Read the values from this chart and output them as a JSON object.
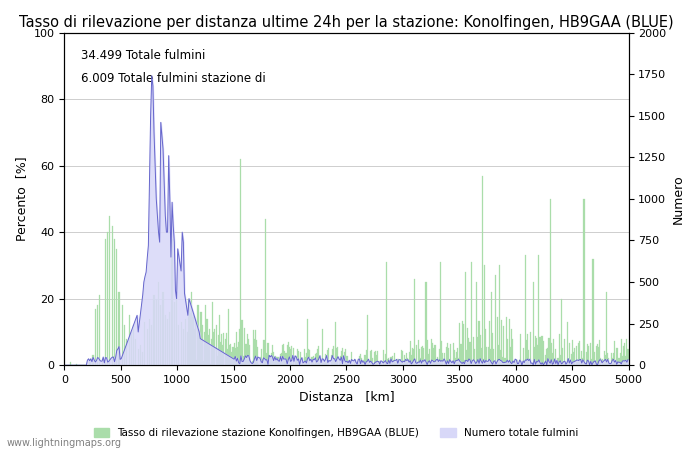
{
  "title": "Tasso di rilevazione per distanza ultime 24h per la stazione: Konolfingen, HB9GAA (BLUE)",
  "xlabel": "Distanza   [km]",
  "ylabel_left": "Percento  [%]",
  "ylabel_right": "Numero",
  "annotation1": "34.499 Totale fulmini",
  "annotation2": "6.009 Totale fulmini stazione di",
  "legend_green": "Tasso di rilevazione stazione Konolfingen, HB9GAA (BLUE)",
  "legend_blue": "Numero totale fulmini",
  "watermark": "www.lightningmaps.org",
  "xlim": [
    0,
    5000
  ],
  "ylim_left": [
    0,
    100
  ],
  "ylim_right": [
    0,
    2000
  ],
  "bar_color": "#aaddaa",
  "bar_edge_color": "#88bb88",
  "blue_fill_color": "#d8d8f8",
  "blue_line_color": "#6666cc",
  "title_fontsize": 10.5,
  "axis_fontsize": 9,
  "tick_fontsize": 8,
  "background_color": "#ffffff",
  "grid_color": "#bbbbbb"
}
